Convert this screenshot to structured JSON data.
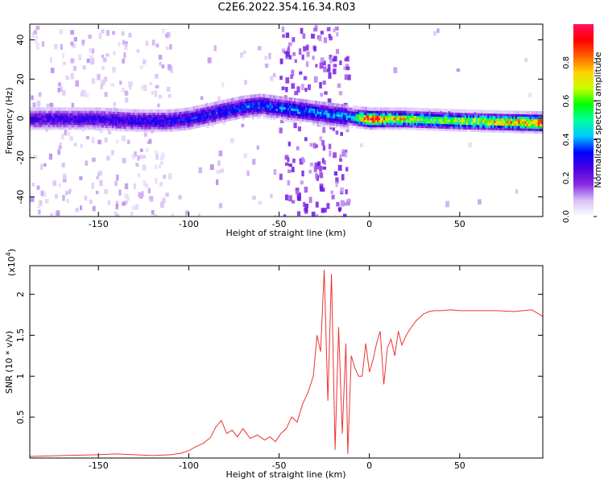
{
  "title": "C2E6.2022.354.16.34.R03",
  "chart_data": [
    {
      "type": "heatmap",
      "xlabel": "Height of straight line (km)",
      "ylabel": "Frequency (Hz)",
      "xlim": [
        -188,
        96
      ],
      "ylim": [
        -50,
        48
      ],
      "xticks": [
        -150,
        -100,
        -50,
        0,
        50
      ],
      "yticks": [
        -40,
        -20,
        0,
        20,
        40
      ],
      "colorbar": {
        "label": "Normalized spectral amplitude",
        "range": [
          0,
          1
        ],
        "ticks": [
          "0.0",
          "0.2",
          "0.4",
          "0.6",
          "0.8"
        ],
        "colormap": [
          "#ffffff",
          "#d8c2f5",
          "#8a2be2",
          "#4b00e0",
          "#0000ff",
          "#00c8ff",
          "#00ffa0",
          "#00ff00",
          "#c8ff00",
          "#ffd000",
          "#ff6000",
          "#ff0000",
          "#ff1060"
        ]
      },
      "ridge_center": [
        [
          -188,
          0
        ],
        [
          -170,
          0
        ],
        [
          -150,
          0
        ],
        [
          -130,
          -1
        ],
        [
          -110,
          -1
        ],
        [
          -100,
          0
        ],
        [
          -90,
          2
        ],
        [
          -80,
          4
        ],
        [
          -70,
          6
        ],
        [
          -60,
          7
        ],
        [
          -52,
          6
        ],
        [
          -10,
          1
        ],
        [
          0,
          0
        ],
        [
          20,
          0
        ],
        [
          50,
          -1
        ],
        [
          96,
          -2
        ]
      ],
      "ridge_peak_amplitude": [
        [
          -188,
          0.25
        ],
        [
          -100,
          0.3
        ],
        [
          -60,
          0.35
        ],
        [
          -10,
          0.4
        ],
        [
          0,
          0.95
        ],
        [
          10,
          0.75
        ],
        [
          30,
          0.6
        ],
        [
          60,
          0.65
        ],
        [
          96,
          0.85
        ]
      ]
    },
    {
      "type": "line",
      "xlabel": "Height of straight line (km)",
      "ylabel": "SNR (10 * v/v)",
      "y_multiplier": "(x10",
      "y_multiplier_exp": "4",
      "y_multiplier_close": ")",
      "xlim": [
        -188,
        96
      ],
      "ylim": [
        0,
        2.35
      ],
      "xticks": [
        -150,
        -100,
        -50,
        0,
        50
      ],
      "yticks": [
        0.5,
        1.0,
        1.5,
        2.0
      ],
      "color": "#ee3333",
      "series": [
        {
          "x": [
            -188,
            -170,
            -150,
            -140,
            -130,
            -120,
            -110,
            -104,
            -100,
            -96,
            -92,
            -88,
            -85,
            -82,
            -79,
            -76,
            -73,
            -70,
            -66,
            -62,
            -58,
            -55,
            -52,
            -49,
            -46,
            -43,
            -40,
            -37,
            -34,
            -31,
            -29,
            -27,
            -25,
            -23,
            -21,
            -19,
            -17,
            -15,
            -13,
            -12,
            -10,
            -8,
            -6,
            -4,
            -2,
            0,
            2,
            4,
            6,
            8,
            10,
            12,
            14,
            16,
            18,
            20,
            22,
            24,
            26,
            28,
            30,
            33,
            36,
            40,
            45,
            50,
            60,
            70,
            80,
            90,
            96
          ],
          "y": [
            0.02,
            0.03,
            0.04,
            0.05,
            0.04,
            0.03,
            0.04,
            0.06,
            0.09,
            0.14,
            0.18,
            0.25,
            0.38,
            0.46,
            0.3,
            0.34,
            0.26,
            0.36,
            0.24,
            0.28,
            0.22,
            0.26,
            0.2,
            0.3,
            0.36,
            0.5,
            0.44,
            0.66,
            0.8,
            1.0,
            1.5,
            1.3,
            2.3,
            0.7,
            2.25,
            0.1,
            1.6,
            0.3,
            1.4,
            0.05,
            1.25,
            1.1,
            1.0,
            1.0,
            1.4,
            1.05,
            1.2,
            1.4,
            1.55,
            0.9,
            1.35,
            1.45,
            1.25,
            1.55,
            1.38,
            1.48,
            1.56,
            1.62,
            1.68,
            1.72,
            1.76,
            1.79,
            1.8,
            1.8,
            1.81,
            1.8,
            1.8,
            1.8,
            1.79,
            1.81,
            1.73
          ]
        }
      ]
    }
  ]
}
